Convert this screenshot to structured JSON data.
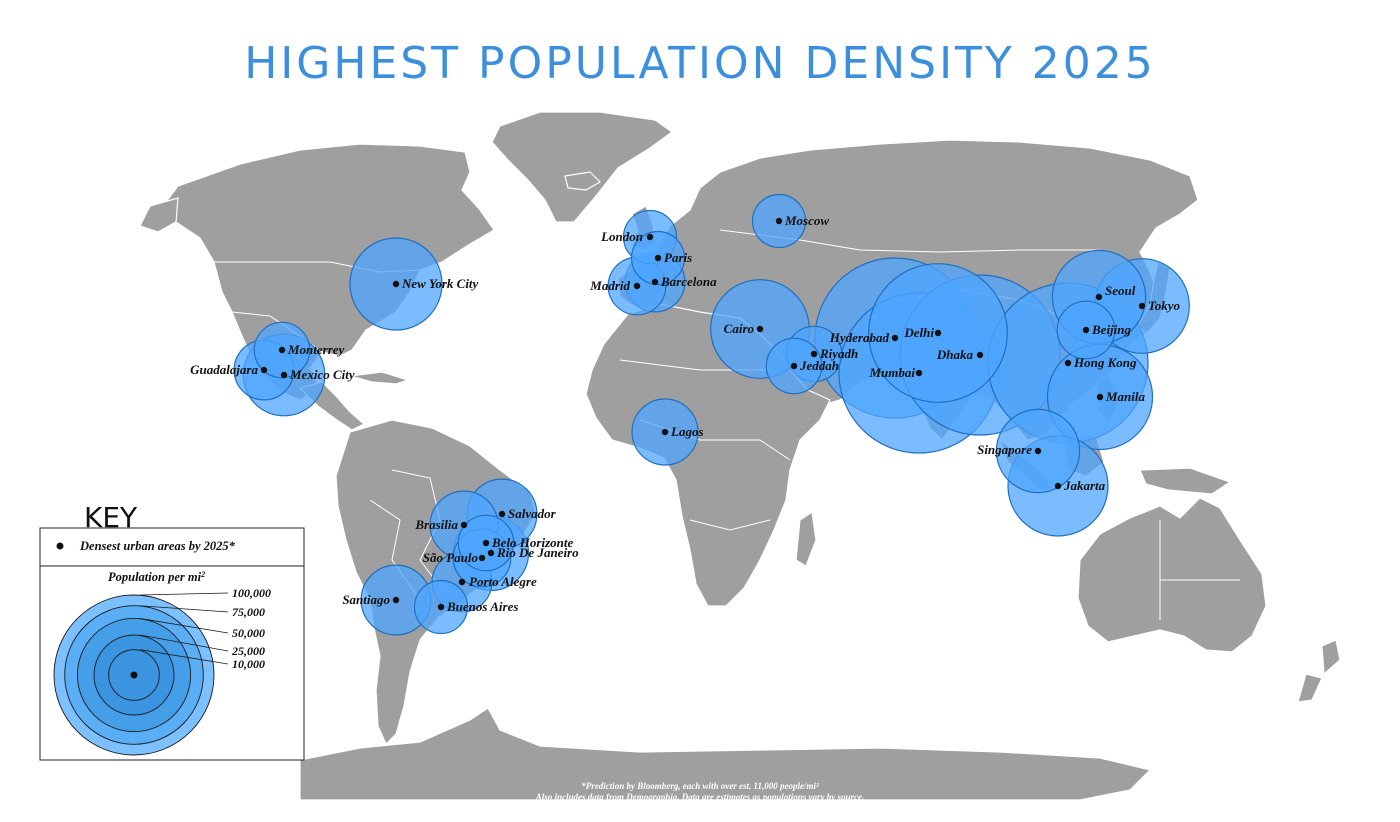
{
  "title": "HIGHEST POPULATION DENSITY 2025",
  "colors": {
    "land": "#9f9f9f",
    "bubble": "#4da6ff",
    "bubble_stroke": "#1f6fc0",
    "title": "#3b8fdc",
    "dot": "#111111"
  },
  "cities": [
    {
      "name": "New York City",
      "density": 33000
    },
    {
      "name": "Monterrey",
      "density": 12000
    },
    {
      "name": "Guadalajara",
      "density": 14000
    },
    {
      "name": "Mexico City",
      "density": 26000
    },
    {
      "name": "London",
      "density": 11000
    },
    {
      "name": "Paris",
      "density": 11000
    },
    {
      "name": "Madrid",
      "density": 13000
    },
    {
      "name": "Barcelona",
      "density": 14000
    },
    {
      "name": "Moscow",
      "density": 11000
    },
    {
      "name": "Cairo",
      "density": 38000
    },
    {
      "name": "Riyadh",
      "density": 12000
    },
    {
      "name": "Jeddah",
      "density": 12000
    },
    {
      "name": "Hyderabad",
      "density": 100000
    },
    {
      "name": "Delhi",
      "density": 75000
    },
    {
      "name": "Mumbai",
      "density": 100000
    },
    {
      "name": "Dhaka",
      "density": 100000
    },
    {
      "name": "Seoul",
      "density": 34000
    },
    {
      "name": "Tokyo",
      "density": 35000
    },
    {
      "name": "Beijing",
      "density": 13000
    },
    {
      "name": "Hong Kong",
      "density": 100000
    },
    {
      "name": "Manila",
      "density": 43000
    },
    {
      "name": "Singapore",
      "density": 27000
    },
    {
      "name": "Jakarta",
      "density": 39000
    },
    {
      "name": "Lagos",
      "density": 17000
    },
    {
      "name": "Brasilia",
      "density": 18000
    },
    {
      "name": "Salvador",
      "density": 19000
    },
    {
      "name": "Belo Horizonte",
      "density": 12000
    },
    {
      "name": "São Paulo",
      "density": 13000
    },
    {
      "name": "Rio De  Janeiro",
      "density": 22000
    },
    {
      "name": "Porto Alegre",
      "density": 14000
    },
    {
      "name": "Santiago",
      "density": 19000
    },
    {
      "name": "Buenos Aires",
      "density": 11000
    }
  ],
  "key": {
    "heading": "KEY",
    "item": "Densest urban areas by 2025*",
    "scale_title": "Population per mi",
    "scale_sup": "2",
    "levels": [
      "100,000",
      "75,000",
      "50,000",
      "25,000",
      "10,000"
    ]
  },
  "footnote": {
    "line1": "*Prediction by Bloomberg, each with over est. 11,000 people/mi²",
    "line2": "Also includes data from Demographia. Data are estimates as populations vary by source."
  }
}
